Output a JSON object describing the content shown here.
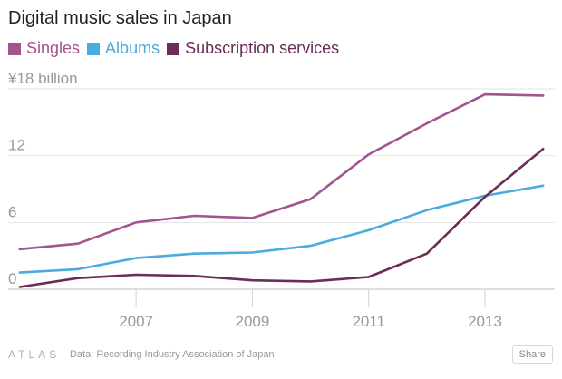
{
  "chart_data": {
    "type": "line",
    "title": "Digital music sales in Japan",
    "x": [
      2005,
      2006,
      2007,
      2008,
      2009,
      2010,
      2011,
      2012,
      2013,
      2014
    ],
    "xticks": [
      2007,
      2009,
      2011,
      2013
    ],
    "xtick_labels": [
      "2007",
      "2009",
      "2011",
      "2013"
    ],
    "xlim": [
      2004.8,
      2014.2
    ],
    "ylim": [
      0,
      18
    ],
    "yticks": [
      0,
      6,
      12,
      18
    ],
    "ytick_labels": [
      "0",
      "6",
      "12",
      "¥18 billion"
    ],
    "xlabel": "",
    "ylabel": "",
    "grid": true,
    "legend_position": "top",
    "series": [
      {
        "name": "Singles",
        "color": "#a3538e",
        "values": [
          3.6,
          4.1,
          6.0,
          6.6,
          6.4,
          8.1,
          12.1,
          14.9,
          17.5,
          17.4
        ]
      },
      {
        "name": "Albums",
        "color": "#4aabe0",
        "values": [
          1.5,
          1.8,
          2.8,
          3.2,
          3.3,
          3.9,
          5.3,
          7.1,
          8.4,
          9.3
        ]
      },
      {
        "name": "Subscription services",
        "color": "#6b2c55",
        "values": [
          0.2,
          1.0,
          1.3,
          1.2,
          0.8,
          0.7,
          1.1,
          3.2,
          8.3,
          12.6
        ]
      }
    ]
  },
  "footer": {
    "brand": "ATLAS",
    "separator": "|",
    "source": "Data: Recording Industry Association of Japan",
    "share_label": "Share"
  }
}
